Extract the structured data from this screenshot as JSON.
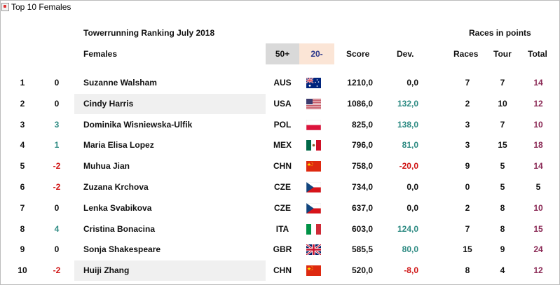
{
  "caption": "Top 10 Females",
  "title": "Towerrunning Ranking July 2018",
  "races_in_points": "Races in points",
  "headers": {
    "category": "Females",
    "age50": "50+",
    "age20": "20-",
    "score": "Score",
    "dev": "Dev.",
    "races": "Races",
    "tour": "Tour",
    "total": "Total"
  },
  "colors": {
    "positive": "#2e8b83",
    "negative": "#d01414",
    "total": "#8b2a56",
    "age50_bg": "#d9d9d9",
    "age20_bg": "#fbe5d6",
    "highlight_bg": "#f0f0f0"
  },
  "rows": [
    {
      "rank": "1",
      "change": "0",
      "change_sign": "zero",
      "name": "Suzanne Walsham",
      "highlight": false,
      "country": "AUS",
      "flag": "au-flag-icon",
      "score": "1210,0",
      "dev": "0,0",
      "dev_sign": "zero",
      "races": "7",
      "tour": "7",
      "total": "14",
      "total_style": "accent"
    },
    {
      "rank": "2",
      "change": "0",
      "change_sign": "zero",
      "name": "Cindy Harris",
      "highlight": true,
      "country": "USA",
      "flag": "us-flag-icon",
      "score": "1086,0",
      "dev": "132,0",
      "dev_sign": "pos",
      "races": "2",
      "tour": "10",
      "total": "12",
      "total_style": "accent"
    },
    {
      "rank": "3",
      "change": "3",
      "change_sign": "pos",
      "name": "Dominika Wisniewska-Ulfik",
      "highlight": false,
      "country": "POL",
      "flag": "pl-flag-icon",
      "score": "825,0",
      "dev": "138,0",
      "dev_sign": "pos",
      "races": "3",
      "tour": "7",
      "total": "10",
      "total_style": "accent"
    },
    {
      "rank": "4",
      "change": "1",
      "change_sign": "pos",
      "name": "Maria Elisa Lopez",
      "highlight": false,
      "country": "MEX",
      "flag": "mx-flag-icon",
      "score": "796,0",
      "dev": "81,0",
      "dev_sign": "pos",
      "races": "3",
      "tour": "15",
      "total": "18",
      "total_style": "accent"
    },
    {
      "rank": "5",
      "change": "-2",
      "change_sign": "neg",
      "name": "Muhua Jian",
      "highlight": false,
      "country": "CHN",
      "flag": "cn-flag-icon",
      "score": "758,0",
      "dev": "-20,0",
      "dev_sign": "neg",
      "races": "9",
      "tour": "5",
      "total": "14",
      "total_style": "accent"
    },
    {
      "rank": "6",
      "change": "-2",
      "change_sign": "neg",
      "name": "Zuzana Krchova",
      "highlight": false,
      "country": "CZE",
      "flag": "cz-flag-icon",
      "score": "734,0",
      "dev": "0,0",
      "dev_sign": "zero",
      "races": "0",
      "tour": "5",
      "total": "5",
      "total_style": "plain"
    },
    {
      "rank": "7",
      "change": "0",
      "change_sign": "zero",
      "name": "Lenka Svabikova",
      "highlight": false,
      "country": "CZE",
      "flag": "cz-flag-icon",
      "score": "637,0",
      "dev": "0,0",
      "dev_sign": "zero",
      "races": "2",
      "tour": "8",
      "total": "10",
      "total_style": "accent"
    },
    {
      "rank": "8",
      "change": "4",
      "change_sign": "pos",
      "name": "Cristina Bonacina",
      "highlight": false,
      "country": "ITA",
      "flag": "it-flag-icon",
      "score": "603,0",
      "dev": "124,0",
      "dev_sign": "pos",
      "races": "7",
      "tour": "8",
      "total": "15",
      "total_style": "accent"
    },
    {
      "rank": "9",
      "change": "0",
      "change_sign": "zero",
      "name": "Sonja Shakespeare",
      "highlight": false,
      "country": "GBR",
      "flag": "gb-flag-icon",
      "score": "585,5",
      "dev": "80,0",
      "dev_sign": "pos",
      "races": "15",
      "tour": "9",
      "total": "24",
      "total_style": "accent"
    },
    {
      "rank": "10",
      "change": "-2",
      "change_sign": "neg",
      "name": "Huiji Zhang",
      "highlight": true,
      "country": "CHN",
      "flag": "cn-flag-icon",
      "score": "520,0",
      "dev": "-8,0",
      "dev_sign": "neg",
      "races": "8",
      "tour": "4",
      "total": "12",
      "total_style": "accent"
    }
  ]
}
